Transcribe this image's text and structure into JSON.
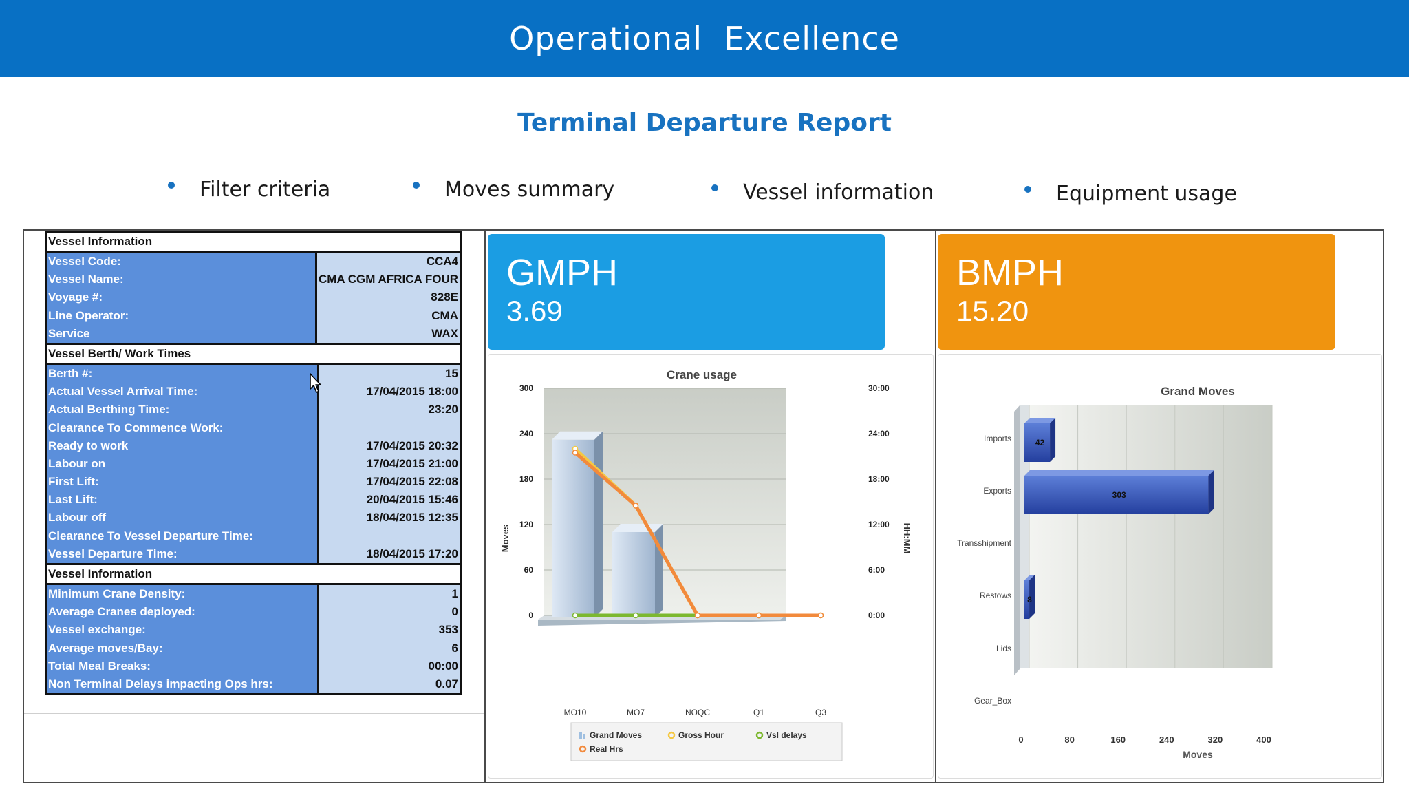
{
  "header": {
    "title": "Operational  Excellence"
  },
  "subtitle": "Terminal Departure Report",
  "bullets": [
    "Filter criteria",
    "Moves summary",
    "Vessel information",
    "Equipment usage"
  ],
  "table": {
    "section1": {
      "title": "Vessel Information",
      "rows": [
        {
          "label": "Vessel Code:",
          "value": "CCA4"
        },
        {
          "label": "Vessel Name:",
          "value": "CMA CGM AFRICA FOUR"
        },
        {
          "label": "Voyage #:",
          "value": "828E"
        },
        {
          "label": "Line Operator:",
          "value": "CMA"
        },
        {
          "label": "Service",
          "value": "WAX"
        }
      ]
    },
    "section2": {
      "title": "Vessel Berth/ Work Times",
      "rows": [
        {
          "label": "Berth #:",
          "value": "15"
        },
        {
          "label": "Actual Vessel Arrival Time:",
          "value": "17/04/2015 18:00"
        },
        {
          "label": "Actual Berthing Time:",
          "value": "23:20"
        },
        {
          "label": "Clearance To Commence Work:",
          "value": ""
        },
        {
          "label": "Ready to work",
          "value": "17/04/2015 20:32"
        },
        {
          "label": "Labour on",
          "value": "17/04/2015 21:00"
        },
        {
          "label": "First Lift:",
          "value": "17/04/2015 22:08"
        },
        {
          "label": "Last Lift:",
          "value": "20/04/2015 15:46"
        },
        {
          "label": "Labour off",
          "value": "18/04/2015 12:35"
        },
        {
          "label": "Clearance To Vessel Departure Time:",
          "value": ""
        },
        {
          "label": "Vessel Departure Time:",
          "value": "18/04/2015 17:20"
        }
      ]
    },
    "section3": {
      "title": "Vessel Information",
      "rows": [
        {
          "label": "Minimum Crane Density:",
          "value": "1"
        },
        {
          "label": "Average Cranes deployed:",
          "value": "0"
        },
        {
          "label": "Vessel exchange:",
          "value": "353"
        },
        {
          "label": "Average moves/Bay:",
          "value": "6"
        },
        {
          "label": "Total Meal Breaks:",
          "value": "00:00"
        },
        {
          "label": "Non Terminal Delays impacting  Ops hrs:",
          "value": "0.07"
        }
      ]
    }
  },
  "kpis": [
    {
      "label": "GMPH",
      "value": "3.69",
      "color": "#1b9de3"
    },
    {
      "label": "BMPH",
      "value": "15.20",
      "color": "#f0940f"
    }
  ],
  "chart_data": [
    {
      "type": "bar",
      "title": "Crane usage",
      "ylabel": "Moves",
      "y2label": "HH:MM",
      "categories": [
        "MO10",
        "MO7",
        "NOQC",
        "Q1",
        "Q3"
      ],
      "ylim": [
        0,
        300
      ],
      "yticks": [
        "0",
        "60",
        "120",
        "180",
        "240",
        "300"
      ],
      "y2ticks": [
        "0:00",
        "6:00",
        "12:00",
        "18:00",
        "24:00",
        "30:00"
      ],
      "series": [
        {
          "name": "Grand Moves",
          "kind": "bar",
          "values": [
            232,
            110,
            0,
            0,
            0
          ],
          "color": "#b8cbe0"
        },
        {
          "name": "Gross Hour",
          "kind": "line",
          "values": [
            22,
            14.5,
            0,
            0,
            0
          ],
          "unit": "hours",
          "color": "#f5c842"
        },
        {
          "name": "Vsl delays",
          "kind": "line",
          "values": [
            0,
            0,
            0,
            0,
            0
          ],
          "unit": "hours",
          "color": "#7cb82f"
        },
        {
          "name": "Real Hrs",
          "kind": "line",
          "values": [
            21.5,
            14.5,
            0,
            0,
            0
          ],
          "unit": "hours",
          "color": "#f28a3c"
        }
      ],
      "legend": "bottom"
    },
    {
      "type": "bar",
      "orientation": "horizontal",
      "title": "Grand Moves",
      "xlabel": "Moves",
      "categories": [
        "Imports",
        "Exports",
        "Transshipment",
        "Restows",
        "Lids",
        "Gear_Box"
      ],
      "values": [
        42,
        303,
        0,
        8,
        0,
        0
      ],
      "xlim": [
        0,
        400
      ],
      "xticks": [
        "0",
        "80",
        "160",
        "240",
        "320",
        "400"
      ],
      "bar_color": "#2f55b8"
    }
  ]
}
